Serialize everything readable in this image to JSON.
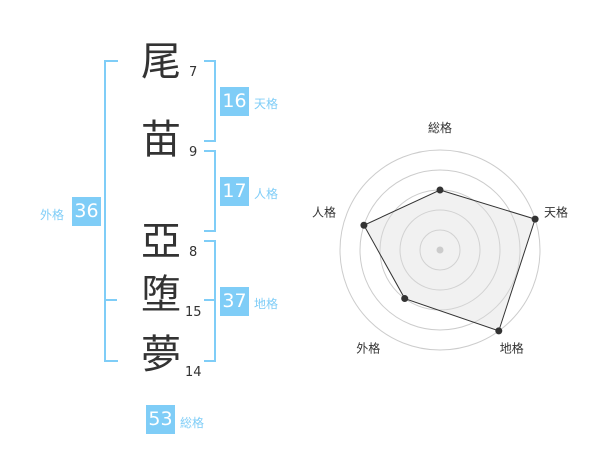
{
  "characters": [
    {
      "char": "尾",
      "strokes": "7"
    },
    {
      "char": "苗",
      "strokes": "9"
    },
    {
      "char": "亞",
      "strokes": "8"
    },
    {
      "char": "堕",
      "strokes": "15"
    },
    {
      "char": "夢",
      "strokes": "14"
    }
  ],
  "fortunes": {
    "tenkaku": {
      "label": "天格",
      "value": "16"
    },
    "jinkaku": {
      "label": "人格",
      "value": "17"
    },
    "chikaku": {
      "label": "地格",
      "value": "37"
    },
    "gaikaku": {
      "label": "外格",
      "value": "36"
    },
    "soukaku": {
      "label": "総格",
      "value": "53"
    }
  },
  "accent_color": "#7fcdf7",
  "chart_data": {
    "type": "radar",
    "axes": [
      "総格",
      "天格",
      "地格",
      "外格",
      "人格"
    ],
    "values": [
      3,
      5,
      5,
      3,
      4
    ],
    "range": [
      0,
      5
    ],
    "rings": 5
  }
}
